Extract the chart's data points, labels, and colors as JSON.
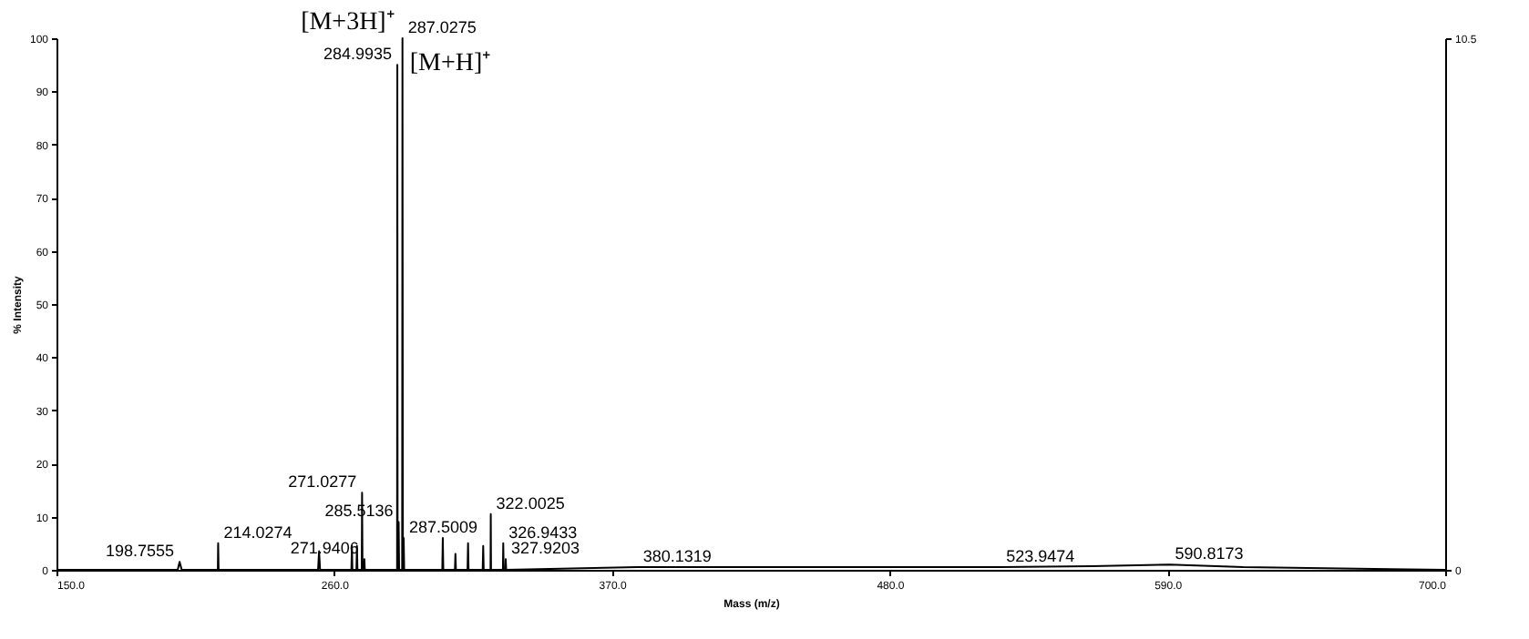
{
  "chart_data": {
    "type": "line",
    "xlabel": "Mass (m/z)",
    "ylabel": "% Intensity",
    "xlim": [
      150,
      700
    ],
    "xticks": [
      {
        "value": 150,
        "label": "150.0"
      },
      {
        "value": 260,
        "label": "260.0"
      },
      {
        "value": 370,
        "label": "370.0"
      },
      {
        "value": 480,
        "label": "480.0"
      },
      {
        "value": 590,
        "label": "590.0"
      },
      {
        "value": 700,
        "label": "700.0"
      }
    ],
    "ylim": [
      0,
      100
    ],
    "yticks": [
      0,
      10,
      20,
      30,
      40,
      50,
      60,
      70,
      80,
      90,
      100
    ],
    "y2lim": [
      0,
      10.5
    ],
    "y2ticks": [
      0,
      10.5
    ],
    "series": [
      {
        "color": "#000000",
        "x": [
          150,
          198.0,
          198.7555,
          199.6,
          213.9,
          214.0274,
          214.2,
          253.6,
          254,
          254.4,
          266.8,
          267,
          267.2,
          268.8,
          269,
          269.2,
          270.9,
          271.0277,
          271.2,
          271.8,
          271.9406,
          272.1,
          284.9,
          284.9935,
          285.1,
          285.4,
          285.5136,
          285.7,
          286.9,
          287.0275,
          287.2,
          287.4,
          287.5009,
          287.7,
          302.8,
          303,
          303.2,
          307.8,
          308,
          308.2,
          312.8,
          313,
          313.2,
          318.8,
          319,
          319.2,
          321.9,
          322.0025,
          322.1,
          326.8,
          326.9433,
          327.1,
          327.8,
          327.9203,
          328.1,
          380.1319,
          523.9474,
          560,
          590.8173,
          620,
          700
        ],
        "values": [
          0,
          0,
          1.5,
          0,
          0,
          5,
          0,
          0,
          3.5,
          0,
          0,
          4.5,
          0,
          0,
          4.5,
          0,
          0,
          14.5,
          0,
          0,
          2,
          0,
          0,
          95,
          0,
          0,
          9,
          0,
          0,
          100,
          0,
          0,
          6,
          0,
          0,
          6,
          0,
          0,
          3,
          0,
          0,
          5,
          0,
          0,
          4.5,
          0,
          0,
          10.5,
          0,
          0,
          5,
          0,
          0,
          2,
          0,
          0.5,
          0.5,
          0.7,
          1,
          0.5,
          0
        ]
      }
    ],
    "annotations": [
      {
        "text": "198.7555",
        "x": 198.7555,
        "y": 1.5
      },
      {
        "text": "214.0274",
        "x": 214.0274,
        "y": 5
      },
      {
        "text": "271.0277",
        "x": 271.0277,
        "y": 14.5
      },
      {
        "text": "271.9406",
        "x": 271.9406,
        "y": 2
      },
      {
        "text": "284.9935",
        "x": 284.9935,
        "y": 95
      },
      {
        "text": "285.5136",
        "x": 285.5136,
        "y": 9
      },
      {
        "text": "287.0275",
        "x": 287.0275,
        "y": 100
      },
      {
        "text": "287.5009",
        "x": 287.5009,
        "y": 6
      },
      {
        "text": "322.0025",
        "x": 322.0025,
        "y": 10.5
      },
      {
        "text": "326.9433",
        "x": 326.9433,
        "y": 5
      },
      {
        "text": "327.9203",
        "x": 327.9203,
        "y": 2
      },
      {
        "text": "380.1319",
        "x": 380.1319,
        "y": 0.5
      },
      {
        "text": "523.9474",
        "x": 523.9474,
        "y": 0.5
      },
      {
        "text": "590.8173",
        "x": 590.8173,
        "y": 1
      },
      {
        "text": "[M+3H]⁺",
        "x": 287.0275,
        "y": 100
      },
      {
        "text": "[M+H]⁺",
        "x": 287.0275,
        "y": 95
      }
    ],
    "grid": false,
    "marker": "none",
    "line_style": "solid"
  }
}
